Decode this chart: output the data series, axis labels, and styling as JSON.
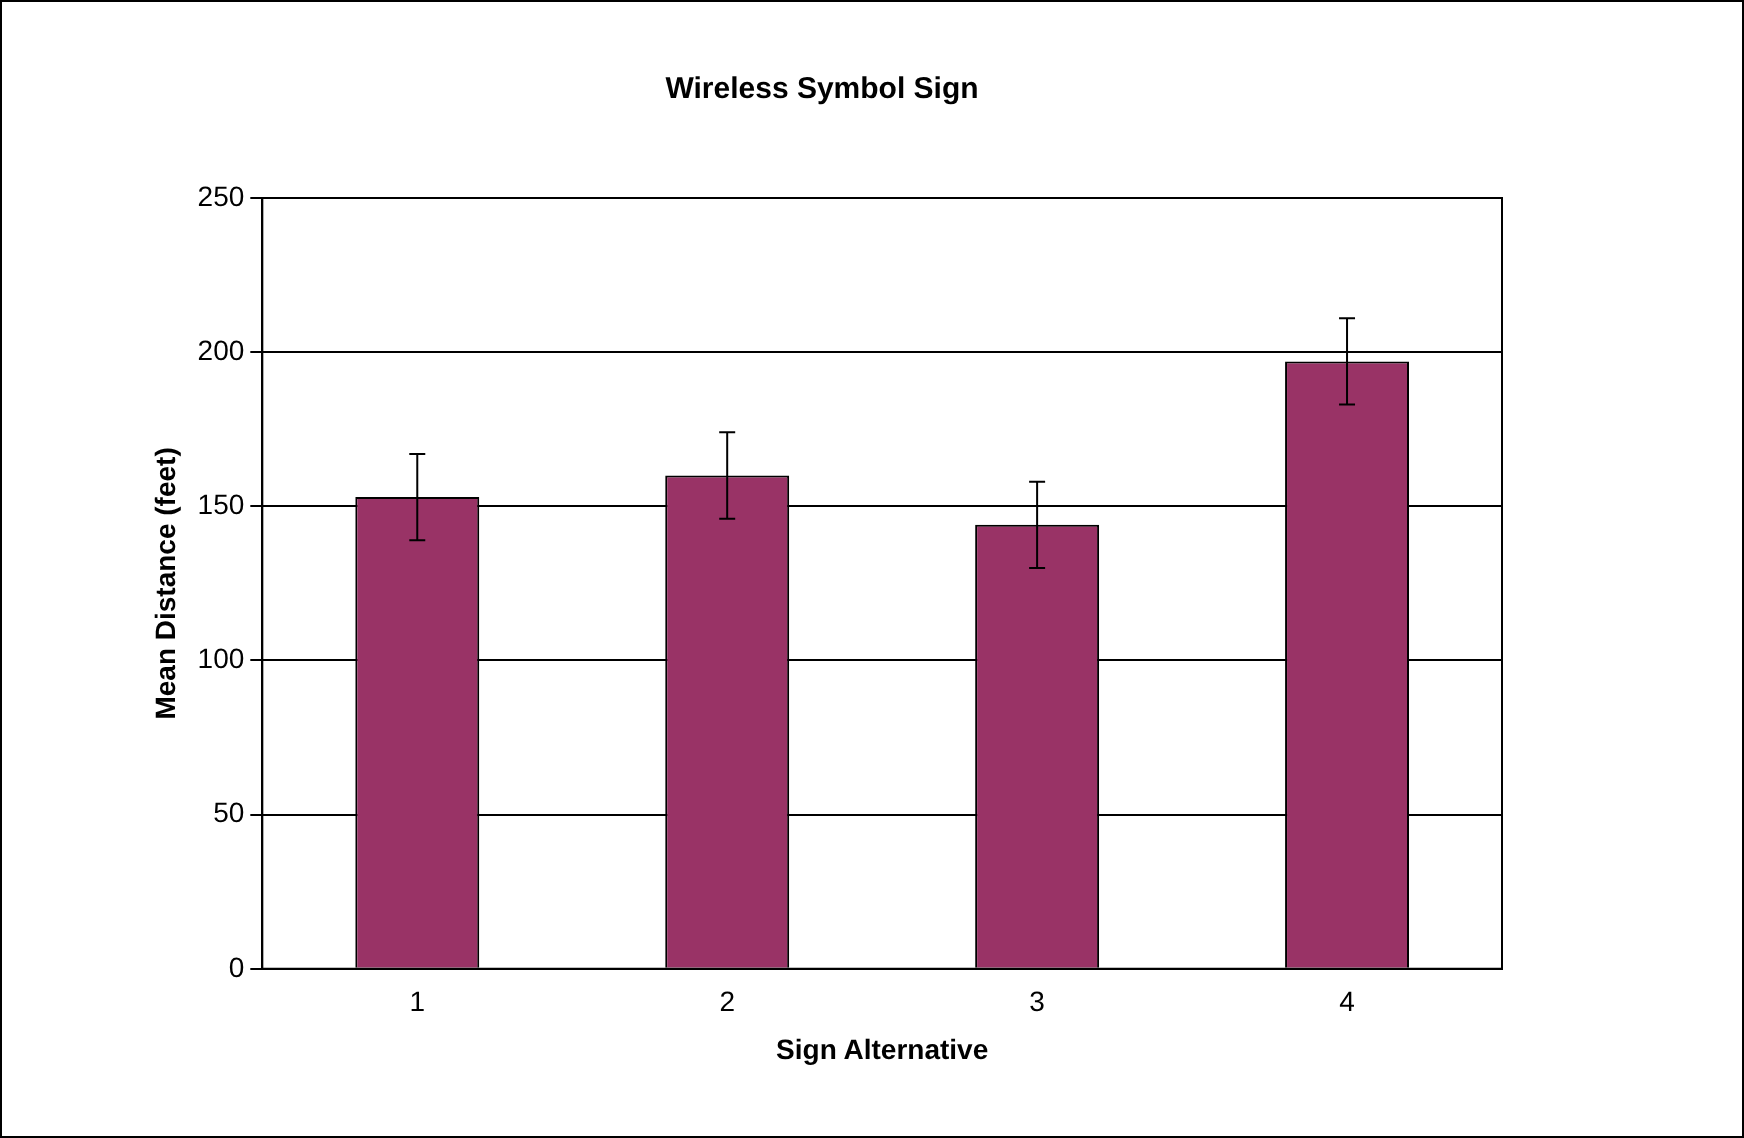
{
  "chart_data": {
    "type": "bar",
    "title": "Wireless Symbol Sign",
    "xlabel": "Sign Alternative",
    "ylabel": "Mean Distance (feet)",
    "categories": [
      "1",
      "2",
      "3",
      "4"
    ],
    "values": [
      153,
      160,
      144,
      197
    ],
    "errors": [
      14,
      14,
      14,
      14
    ],
    "color": "#993366",
    "ylim": [
      0,
      250
    ],
    "yticks": [
      0,
      50,
      100,
      150,
      200,
      250
    ],
    "grid": "y",
    "legend": false
  }
}
